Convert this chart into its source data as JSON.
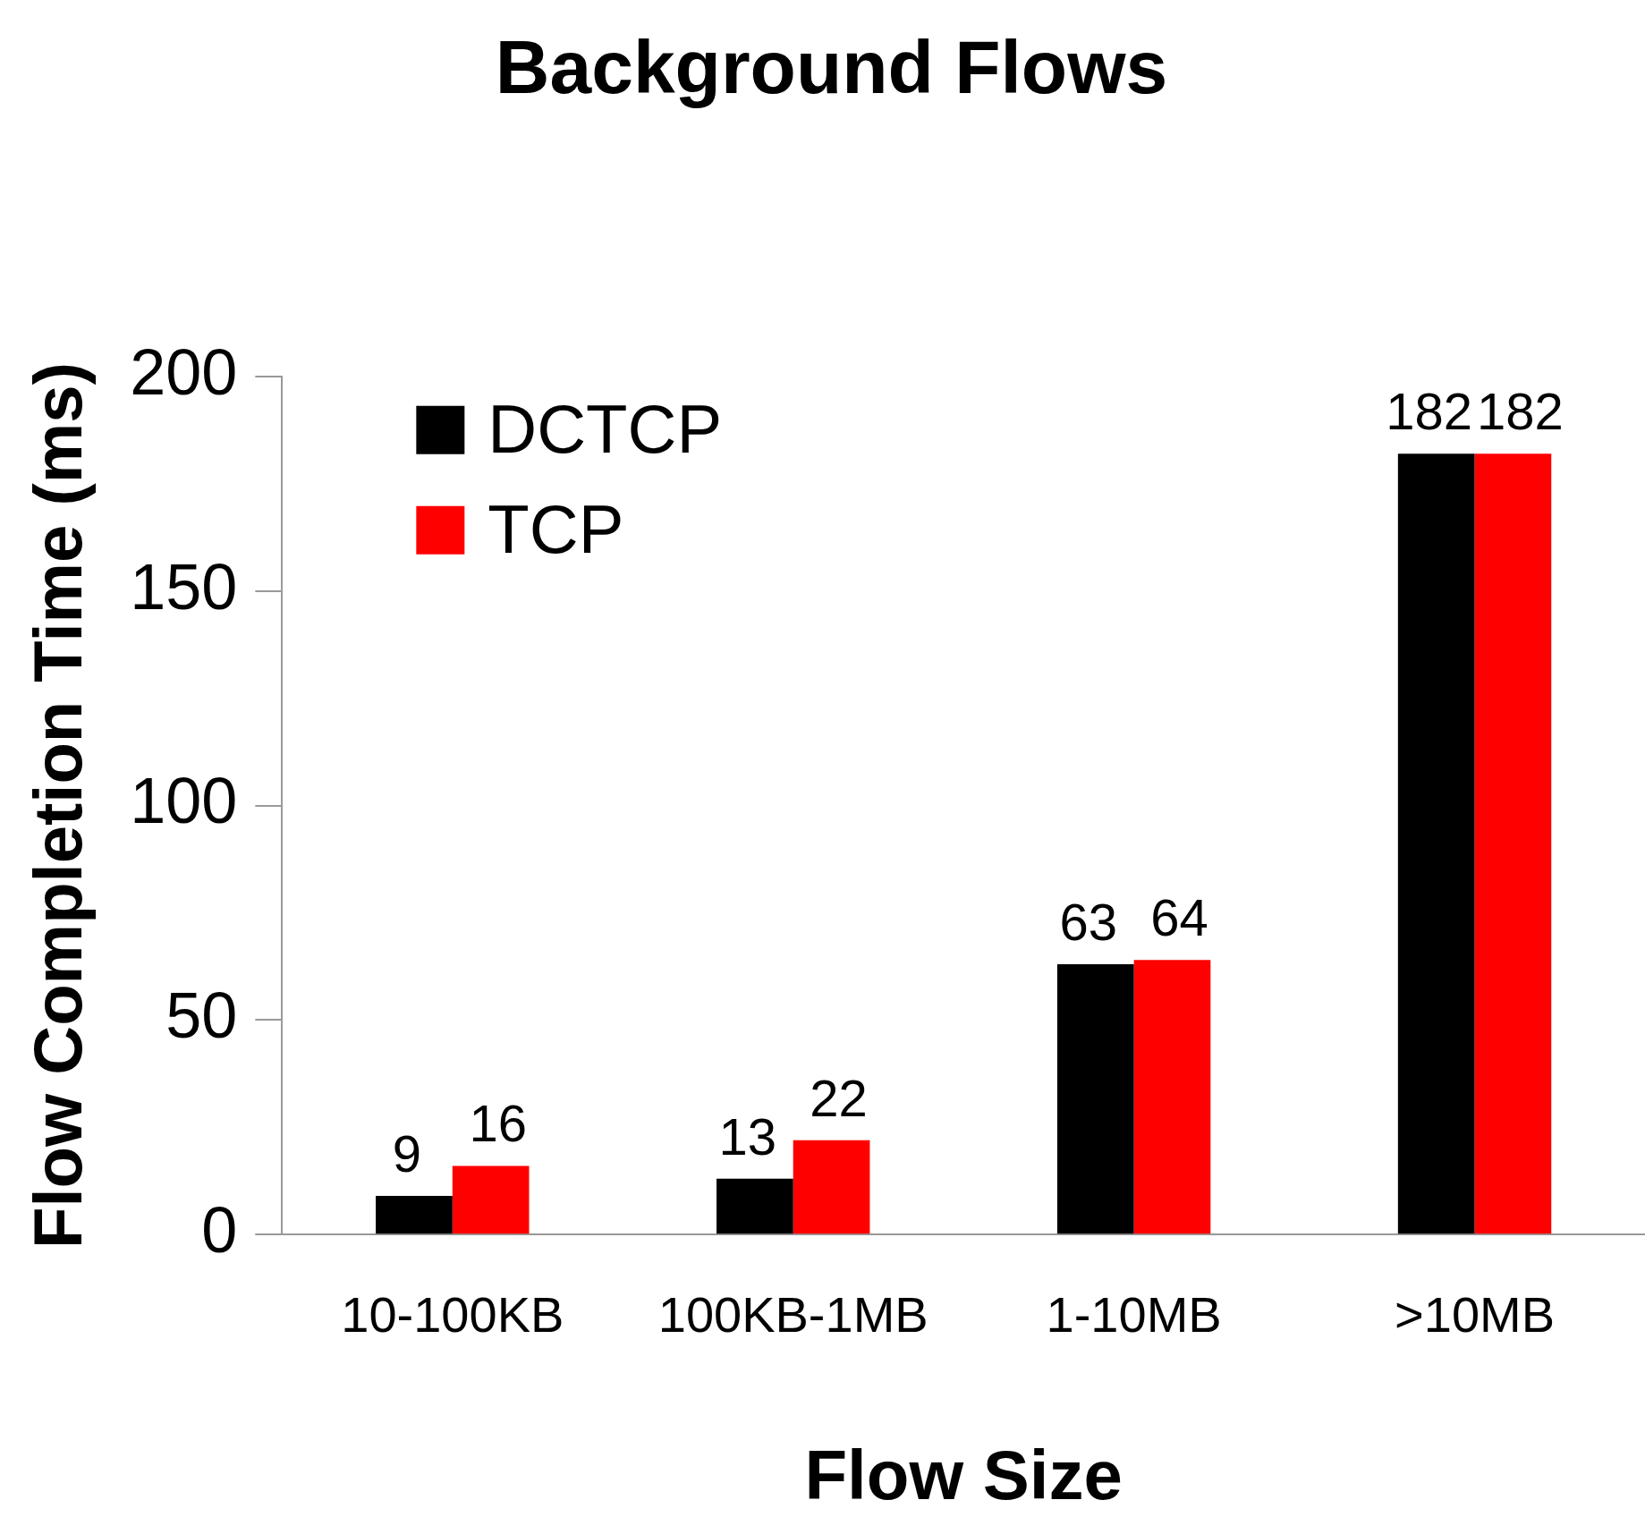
{
  "chart_data": {
    "type": "bar",
    "title": "Background Flows",
    "xlabel": "Flow Size",
    "ylabel": "Flow Completion Time (ms)",
    "categories": [
      "10-100KB",
      "100KB-1MB",
      "1-10MB",
      ">10MB"
    ],
    "series": [
      {
        "name": "DCTCP",
        "color": "#000000",
        "values": [
          9,
          13,
          63,
          182
        ]
      },
      {
        "name": "TCP",
        "color": "#ff0000",
        "values": [
          16,
          22,
          64,
          182
        ]
      }
    ],
    "ylim": [
      0,
      200
    ],
    "yticks": [
      0,
      50,
      100,
      150,
      200
    ],
    "grid": false,
    "legend": "top left",
    "data_labels": true
  }
}
